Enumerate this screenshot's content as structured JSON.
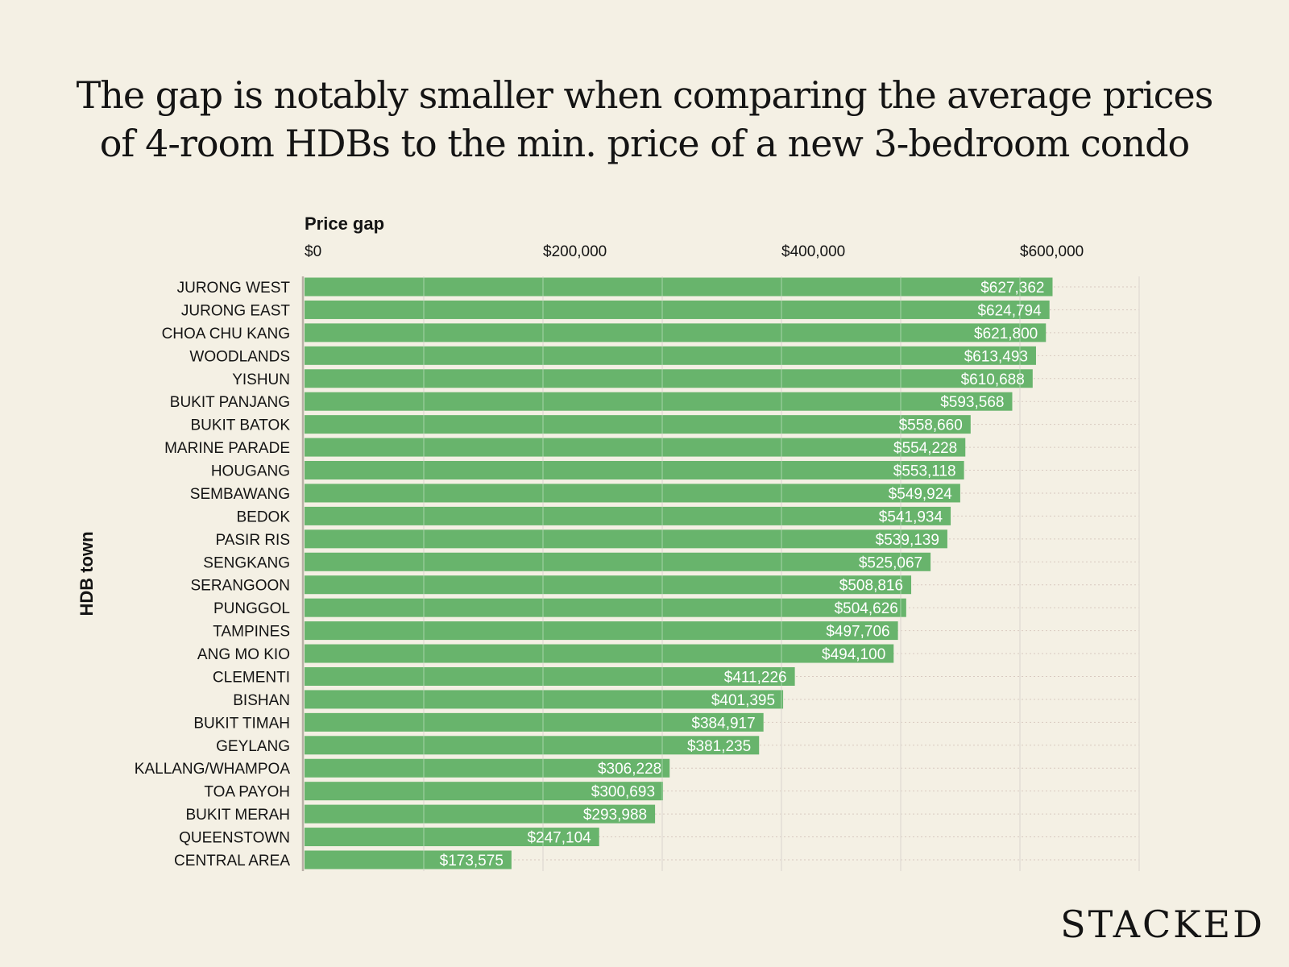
{
  "title_lines": [
    "The gap is notably smaller when comparing the average prices",
    "of 4-room HDBs to the min. price of a new 3-bedroom condo"
  ],
  "logo": "STACKED",
  "colors": {
    "bar": "#68b46c",
    "background": "#f4f0e4"
  },
  "chart_data": {
    "type": "bar",
    "orientation": "horizontal",
    "title": "The gap is notably smaller when comparing the average prices of 4-room HDBs to the min. price of a new 3-bedroom condo",
    "xlabel": "Price gap",
    "ylabel": "HDB town",
    "xlim": [
      0,
      700000
    ],
    "x_ticks": [
      0,
      200000,
      400000,
      600000
    ],
    "x_tick_labels": [
      "$0",
      "$200,000",
      "$400,000",
      "$600,000"
    ],
    "grid": true,
    "categories": [
      "JURONG WEST",
      "JURONG EAST",
      "CHOA CHU KANG",
      "WOODLANDS",
      "YISHUN",
      "BUKIT PANJANG",
      "BUKIT BATOK",
      "MARINE PARADE",
      "HOUGANG",
      "SEMBAWANG",
      "BEDOK",
      "PASIR RIS",
      "SENGKANG",
      "SERANGOON",
      "PUNGGOL",
      "TAMPINES",
      "ANG MO KIO",
      "CLEMENTI",
      "BISHAN",
      "BUKIT TIMAH",
      "GEYLANG",
      "KALLANG/WHAMPOA",
      "TOA PAYOH",
      "BUKIT MERAH",
      "QUEENSTOWN",
      "CENTRAL AREA"
    ],
    "values": [
      627362,
      624794,
      621800,
      613493,
      610688,
      593568,
      558660,
      554228,
      553118,
      549924,
      541934,
      539139,
      525067,
      508816,
      504626,
      497706,
      494100,
      411226,
      401395,
      384917,
      381235,
      306228,
      300693,
      293988,
      247104,
      173575
    ],
    "data_labels": [
      "$627,362",
      "$624,794",
      "$621,800",
      "$613,493",
      "$610,688",
      "$593,568",
      "$558,660",
      "$554,228",
      "$553,118",
      "$549,924",
      "$541,934",
      "$539,139",
      "$525,067",
      "$508,816",
      "$504,626",
      "$497,706",
      "$494,100",
      "$411,226",
      "$401,395",
      "$384,917",
      "$381,235",
      "$306,228",
      "$300,693",
      "$293,988",
      "$247,104",
      "$173,575"
    ]
  }
}
